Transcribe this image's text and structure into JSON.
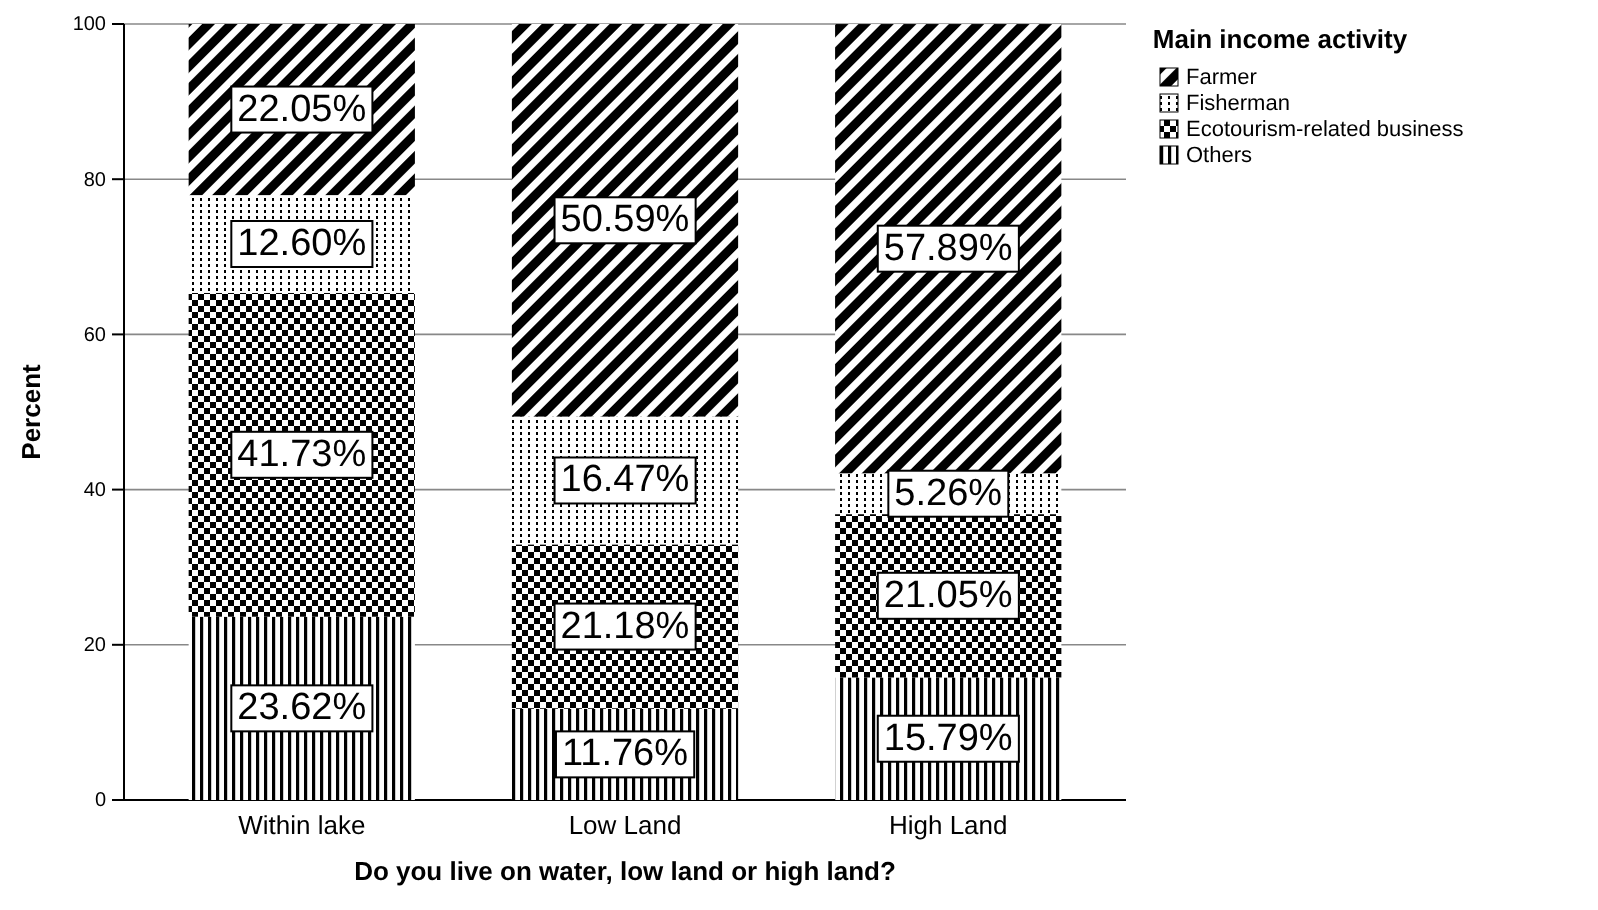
{
  "chart_data": {
    "type": "bar",
    "stacked": true,
    "xlabel": "Do you live on water, low land or high land?",
    "ylabel": "Percent",
    "legend_title": "Main income activity",
    "legend": "top right",
    "grid": "y",
    "categories": [
      "Within lake",
      "Low Land",
      "High Land"
    ],
    "ylim": [
      0,
      100
    ],
    "yticks": [
      0,
      20,
      40,
      60,
      80,
      100
    ],
    "series": [
      {
        "name": "Others",
        "color": "#000000",
        "values": [
          23.62,
          11.76,
          15.79
        ],
        "value_labels": [
          "23.62%",
          "11.76%",
          "15.79%"
        ]
      },
      {
        "name": "Ecotourism-related business",
        "color": "#000000",
        "values": [
          41.73,
          21.18,
          21.05
        ],
        "value_labels": [
          "41.73%",
          "21.18%",
          "21.05%"
        ]
      },
      {
        "name": "Fisherman",
        "color": "#000000",
        "values": [
          12.6,
          16.47,
          5.26
        ],
        "value_labels": [
          "12.60%",
          "16.47%",
          "5.26%"
        ]
      },
      {
        "name": "Farmer",
        "color": "#000000",
        "values": [
          22.05,
          50.59,
          57.89
        ],
        "value_labels": [
          "22.05%",
          "50.59%",
          "57.89%"
        ]
      }
    ]
  }
}
